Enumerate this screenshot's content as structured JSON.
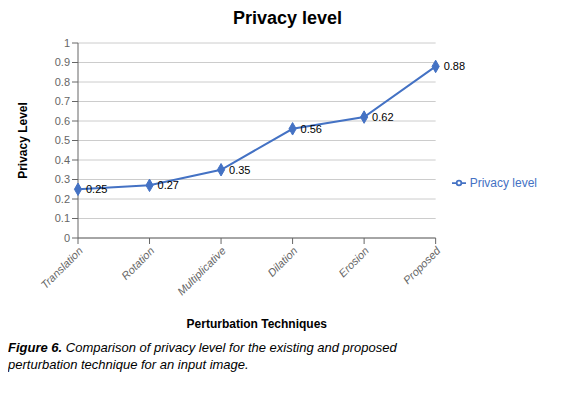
{
  "chart_data": {
    "type": "line",
    "title": "Privacy level",
    "categories": [
      "Translation",
      "Rotation",
      "Multiplicative",
      "Dilation",
      "Erosion",
      "Proposed"
    ],
    "series": [
      {
        "name": "Privacy level",
        "color": "#4472C4",
        "values": [
          0.25,
          0.27,
          0.35,
          0.56,
          0.62,
          0.88
        ],
        "marker": "diamond"
      }
    ],
    "xlabel": "Perturbation Techniques",
    "ylabel": "Privacy Level",
    "ylim": [
      0,
      1
    ],
    "yticks": [
      0,
      0.1,
      0.2,
      0.3,
      0.4,
      0.5,
      0.6,
      0.7,
      0.8,
      0.9,
      1
    ],
    "grid": true,
    "legend": "right",
    "data_labels": true,
    "caption": [
      "Figure 6.",
      "Comparison of privacy level for the existing and proposed",
      "perturbation technique for an input image."
    ]
  }
}
